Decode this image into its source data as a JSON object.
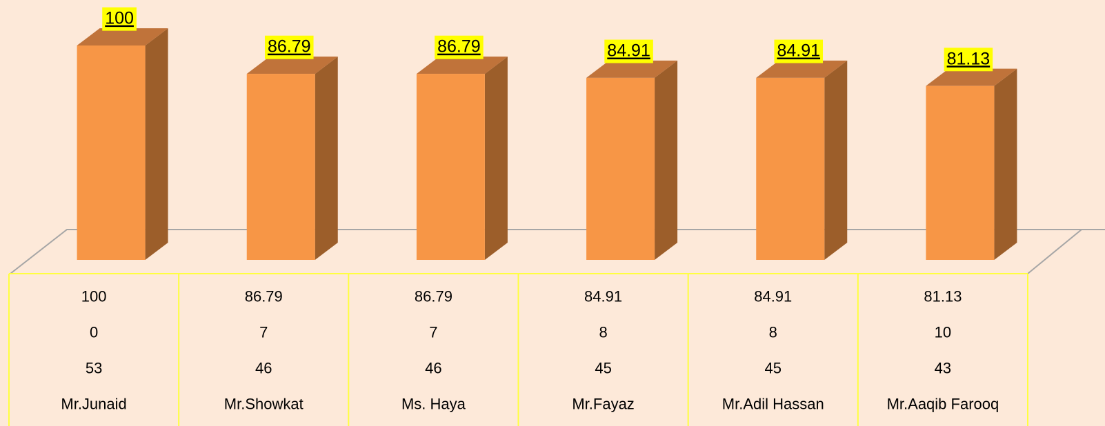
{
  "chart_data": {
    "type": "bar3d",
    "categories": [
      "Mr.Junaid",
      "Mr.Showkat",
      "Ms. Haya",
      "Mr.Fayaz",
      "Mr.Adil Hassan",
      "Mr.Aaqib Farooq"
    ],
    "values": [
      100,
      86.79,
      86.79,
      84.91,
      84.91,
      81.13
    ],
    "table_rows": [
      [
        0,
        7,
        7,
        8,
        8,
        10
      ],
      [
        53,
        46,
        46,
        45,
        45,
        43
      ]
    ],
    "color": "#f79646",
    "label_color": "#ffff00",
    "ylim": [
      0,
      100
    ]
  }
}
